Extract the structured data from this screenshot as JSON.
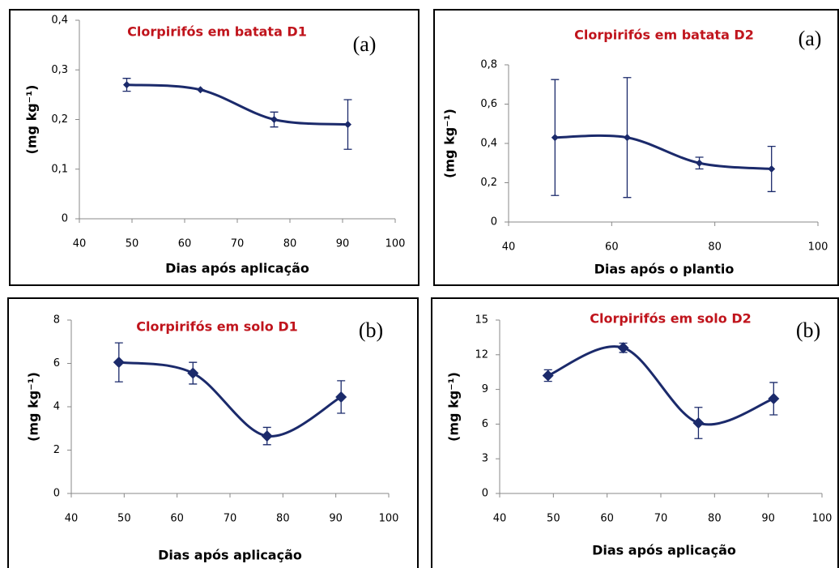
{
  "chart_data": [
    {
      "type": "line",
      "title": "Clorpirifós em batata D1",
      "panel_label": "(a)",
      "xlabel": "Dias após aplicação",
      "ylabel": "(mg kg⁻¹)",
      "x": [
        49,
        63,
        77,
        91
      ],
      "values": [
        0.27,
        0.26,
        0.2,
        0.19
      ],
      "errors": [
        0.013,
        0.0,
        0.015,
        0.05
      ],
      "color": "#1b2a6b",
      "title_color": "#c0141c",
      "xlim": [
        40,
        100
      ],
      "xticks": [
        40,
        50,
        60,
        70,
        80,
        90,
        100
      ],
      "ylim": [
        0,
        0.4
      ],
      "yticks": [
        0,
        {
          "value": 0.1,
          "label": "0,1"
        },
        {
          "value": 0.2,
          "label": "0,2"
        },
        {
          "value": 0.3,
          "label": "0,3"
        },
        {
          "value": 0.4,
          "label": "0,4"
        }
      ]
    },
    {
      "type": "line",
      "title": "Clorpirifós em batata D2",
      "panel_label": "(a)",
      "xlabel": "Dias após o plantio",
      "ylabel": "(mg kg⁻¹)",
      "x": [
        49,
        63,
        77,
        91
      ],
      "values": [
        0.43,
        0.43,
        0.3,
        0.27
      ],
      "errors": [
        0.295,
        0.305,
        0.03,
        0.115
      ],
      "color": "#1b2a6b",
      "title_color": "#c0141c",
      "xlim": [
        40,
        100
      ],
      "xticks": [
        40,
        60,
        80,
        100
      ],
      "ylim": [
        0,
        0.8
      ],
      "yticks": [
        0,
        {
          "value": 0.2,
          "label": "0,2"
        },
        {
          "value": 0.4,
          "label": "0,4"
        },
        {
          "value": 0.6,
          "label": "0,6"
        },
        {
          "value": 0.8,
          "label": "0,8"
        }
      ]
    },
    {
      "type": "line",
      "title": "Clorpirifós em solo D1",
      "panel_label": "(b)",
      "xlabel": "Dias após aplicação",
      "ylabel": "(mg kg⁻¹)",
      "x": [
        49,
        63,
        77,
        91
      ],
      "values": [
        6.05,
        5.55,
        2.65,
        4.45
      ],
      "errors": [
        0.9,
        0.5,
        0.4,
        0.75
      ],
      "color": "#1b2a6b",
      "title_color": "#c0141c",
      "xlim": [
        40,
        100
      ],
      "xticks": [
        40,
        50,
        60,
        70,
        80,
        90,
        100
      ],
      "ylim": [
        0,
        8
      ],
      "yticks": [
        0,
        2,
        4,
        6,
        8
      ]
    },
    {
      "type": "line",
      "title": "Clorpirifós em solo D2",
      "panel_label": "(b)",
      "xlabel": "Dias após aplicação",
      "ylabel": "(mg kg⁻¹)",
      "x": [
        49,
        63,
        77,
        91
      ],
      "values": [
        10.2,
        12.6,
        6.1,
        8.2
      ],
      "errors": [
        0.5,
        0.4,
        1.35,
        1.4
      ],
      "color": "#1b2a6b",
      "title_color": "#c0141c",
      "xlim": [
        40,
        100
      ],
      "xticks": [
        40,
        50,
        60,
        70,
        80,
        90,
        100
      ],
      "ylim": [
        0,
        15
      ],
      "yticks": [
        0,
        3,
        6,
        9,
        12,
        15
      ]
    }
  ]
}
